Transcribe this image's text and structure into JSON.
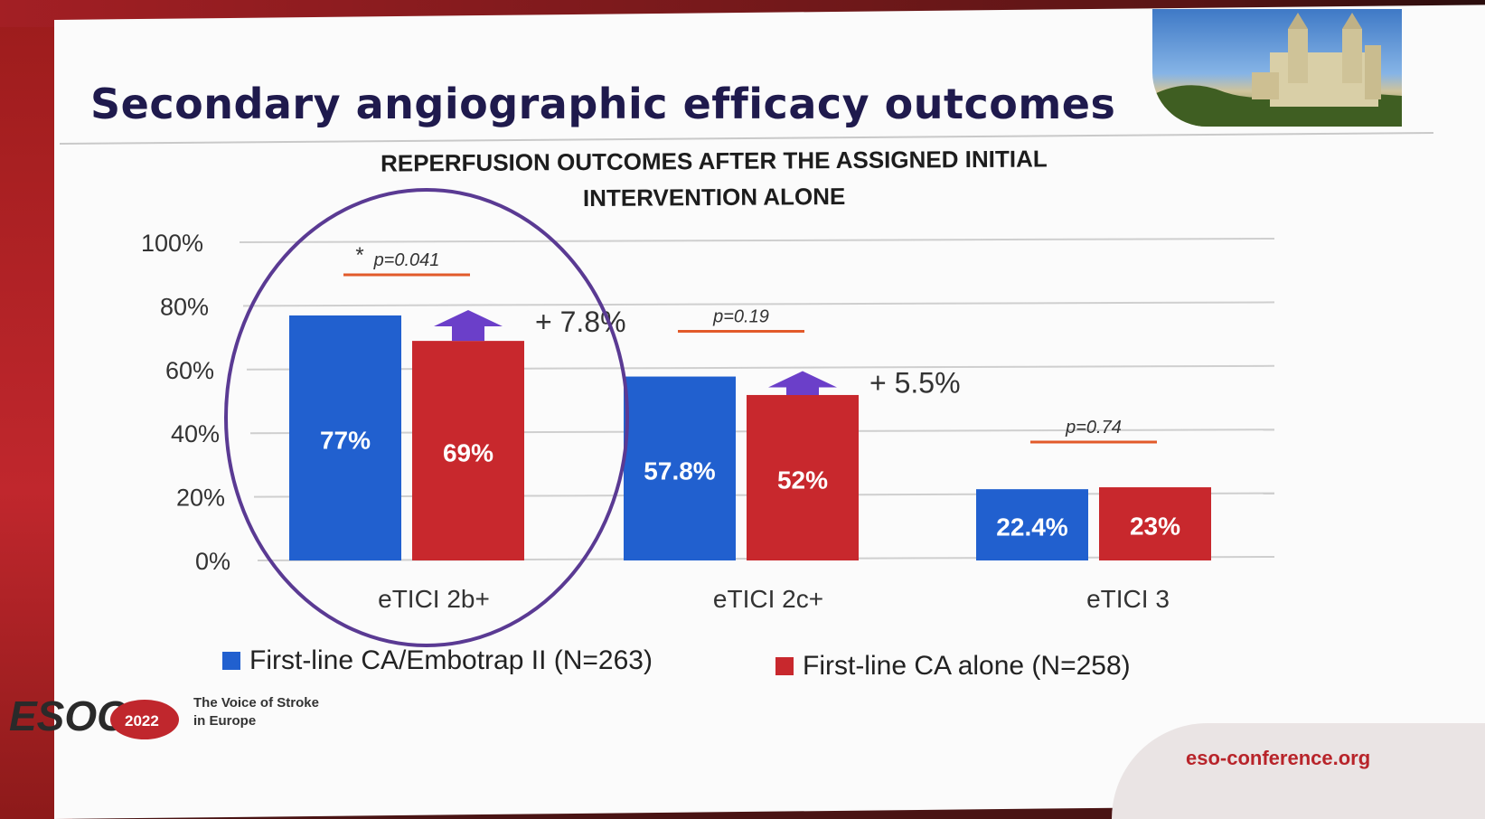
{
  "slide": {
    "title": "Secondary angiographic efficacy outcomes",
    "url": "eso-conference.org",
    "logo_text": "ESOC",
    "logo_year": "2022",
    "tagline_line1": "The Voice of Stroke",
    "tagline_line2": "in Europe"
  },
  "colors": {
    "series1": "#2160cf",
    "series2": "#c8282d",
    "arrow": "#6b3fc9",
    "pline": "#e25a2a",
    "circle": "#5a3a93",
    "title": "#1f1a4d"
  },
  "chart_data": {
    "type": "bar",
    "title": "REPERFUSION OUTCOMES AFTER THE ASSIGNED INITIAL INTERVENTION ALONE",
    "title_line1": "REPERFUSION OUTCOMES AFTER THE ASSIGNED INITIAL",
    "title_line2": "INTERVENTION ALONE",
    "categories": [
      "eTICI 2b+",
      "eTICI 2c+",
      "eTICI 3"
    ],
    "series": [
      {
        "name": "First-line CA/Embotrap II (N=263)",
        "values": [
          77,
          57.8,
          22.4
        ],
        "labels": [
          "77%",
          "57.8%",
          "22.4%"
        ]
      },
      {
        "name": "First-line CA alone (N=258)",
        "values": [
          69,
          52,
          23
        ],
        "labels": [
          "69%",
          "52%",
          "23%"
        ]
      }
    ],
    "yticks": [
      "0%",
      "20%",
      "40%",
      "60%",
      "80%",
      "100%"
    ],
    "ylim": [
      0,
      100
    ],
    "grid": true,
    "pvalues": [
      "p=0.041",
      "p=0.19",
      "p=0.74"
    ],
    "significance_marker": "*",
    "differences": [
      "+ 7.8%",
      "+ 5.5%",
      ""
    ],
    "highlighted_category": "eTICI 2b+",
    "legend_position": "bottom"
  }
}
